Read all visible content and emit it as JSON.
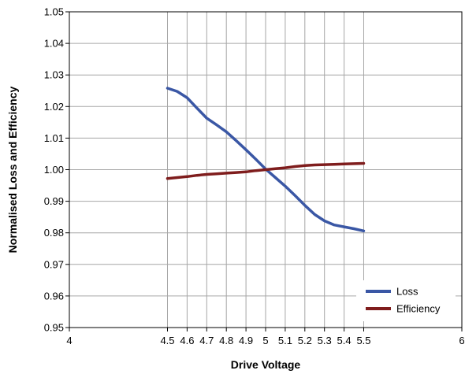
{
  "chart_data": {
    "type": "line",
    "title": "",
    "xlabel": "Drive Voltage",
    "ylabel": "Normalised Loss and Efficiency",
    "xlim": [
      4,
      6
    ],
    "ylim": [
      0.95,
      1.05
    ],
    "x_ticks": [
      "4",
      "4.5",
      "4.6",
      "4.7",
      "4.8",
      "4.9",
      "5",
      "5.1",
      "5.2",
      "5.3",
      "5.4",
      "5.5",
      "6"
    ],
    "y_ticks": [
      "0.95",
      "0.96",
      "0.97",
      "0.98",
      "0.99",
      "1.00",
      "1.01",
      "1.02",
      "1.03",
      "1.04",
      "1.05"
    ],
    "grid": true,
    "legend": "bottom-right",
    "series": [
      {
        "name": "Loss",
        "color": "#3a57a5",
        "x": [
          4.5,
          4.55,
          4.6,
          4.65,
          4.7,
          4.75,
          4.8,
          4.85,
          4.9,
          4.95,
          5.0,
          5.05,
          5.1,
          5.15,
          5.2,
          5.25,
          5.3,
          5.35,
          5.4,
          5.45,
          5.5
        ],
        "y": [
          1.0258,
          1.0248,
          1.0228,
          1.0195,
          1.0163,
          1.0142,
          1.012,
          1.0092,
          1.0063,
          1.0033,
          1.0002,
          0.9975,
          0.9948,
          0.9918,
          0.9887,
          0.9858,
          0.9838,
          0.9825,
          0.9819,
          0.9813,
          0.9806
        ]
      },
      {
        "name": "Efficiency",
        "color": "#7f1d1d",
        "x": [
          4.5,
          4.55,
          4.6,
          4.65,
          4.7,
          4.75,
          4.8,
          4.85,
          4.9,
          4.95,
          5.0,
          5.05,
          5.1,
          5.15,
          5.2,
          5.25,
          5.3,
          5.35,
          5.4,
          5.45,
          5.5
        ],
        "y": [
          0.9972,
          0.9975,
          0.9978,
          0.9982,
          0.9985,
          0.9987,
          0.9989,
          0.9991,
          0.9993,
          0.9997,
          1.0,
          1.0003,
          1.0006,
          1.001,
          1.0013,
          1.0015,
          1.0016,
          1.0017,
          1.0018,
          1.0019,
          1.002
        ]
      }
    ]
  }
}
